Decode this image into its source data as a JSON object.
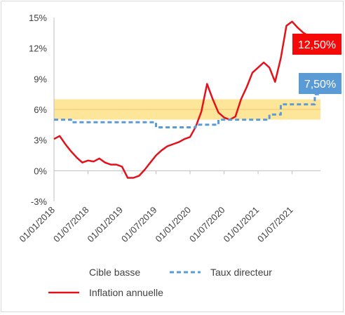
{
  "chart_data": {
    "type": "line",
    "title": "",
    "xlabel": "",
    "ylabel": "",
    "ylim": [
      -3,
      15
    ],
    "yticks": [
      -3,
      0,
      3,
      6,
      9,
      12,
      15
    ],
    "ytick_labels": [
      "-3%",
      "0%",
      "3%",
      "6%",
      "9%",
      "12%",
      "15%"
    ],
    "xticks": [
      "2018-01-01",
      "2018-07-01",
      "2019-01-01",
      "2019-07-01",
      "2020-01-01",
      "2020-07-01",
      "2021-01-01",
      "2021-07-01"
    ],
    "xtick_labels": [
      "01/01/2018",
      "01/07/2018",
      "01/01/2019",
      "01/07/2019",
      "01/01/2020",
      "01/07/2020",
      "01/01/2021",
      "01/07/2021"
    ],
    "xlim": [
      "2018-01-01",
      "2021-12-01"
    ],
    "grid": false,
    "target_band": {
      "low": 5,
      "high": 7,
      "midline": 6,
      "color": "#fde699",
      "line_color": "#f7c56b"
    },
    "series": [
      {
        "name": "Inflation annuelle",
        "style": "solid",
        "color": "#e4111b",
        "x": [
          "2018-01-01",
          "2018-02-01",
          "2018-03-01",
          "2018-04-01",
          "2018-05-01",
          "2018-06-01",
          "2018-07-01",
          "2018-08-01",
          "2018-09-01",
          "2018-10-01",
          "2018-11-01",
          "2018-12-01",
          "2019-01-01",
          "2019-02-01",
          "2019-03-01",
          "2019-04-01",
          "2019-05-01",
          "2019-06-01",
          "2019-07-01",
          "2019-08-01",
          "2019-09-01",
          "2019-10-01",
          "2019-11-01",
          "2019-12-01",
          "2020-01-01",
          "2020-02-01",
          "2020-03-01",
          "2020-04-01",
          "2020-05-01",
          "2020-06-01",
          "2020-07-01",
          "2020-08-01",
          "2020-09-01",
          "2020-10-01",
          "2020-11-01",
          "2020-12-01",
          "2021-01-01",
          "2021-02-01",
          "2021-03-01",
          "2021-04-01",
          "2021-05-01",
          "2021-06-01",
          "2021-07-01",
          "2021-08-01",
          "2021-09-01",
          "2021-10-01",
          "2021-11-01"
        ],
        "values": [
          3.1,
          3.4,
          2.6,
          1.9,
          1.3,
          0.8,
          1.0,
          0.9,
          1.2,
          0.8,
          0.6,
          0.6,
          0.4,
          -0.7,
          -0.7,
          -0.5,
          0.1,
          0.8,
          1.5,
          2.0,
          2.4,
          2.6,
          2.8,
          3.1,
          3.3,
          4.3,
          5.8,
          8.5,
          7.0,
          5.7,
          5.2,
          5.0,
          5.3,
          7.0,
          8.2,
          9.6,
          10.1,
          10.6,
          10.1,
          8.7,
          11.0,
          14.2,
          14.6,
          14.0,
          13.5,
          13.2,
          12.5
        ]
      },
      {
        "name": "Taux directeur",
        "style": "dashed",
        "color": "#5b9bd5",
        "x": [
          "2018-01-01",
          "2018-04-01",
          "2018-04-01",
          "2019-07-01",
          "2019-07-01",
          "2020-02-01",
          "2020-02-01",
          "2020-06-01",
          "2020-06-01",
          "2021-03-01",
          "2021-03-01",
          "2021-05-01",
          "2021-05-01",
          "2021-07-01",
          "2021-07-01",
          "2021-11-01",
          "2021-11-01",
          "2021-12-01"
        ],
        "values": [
          5.0,
          5.0,
          4.75,
          4.75,
          4.25,
          4.25,
          4.5,
          4.5,
          5.0,
          5.0,
          5.5,
          5.5,
          6.5,
          6.5,
          6.5,
          6.5,
          7.5,
          7.5
        ]
      }
    ],
    "legend": {
      "placement": "bottom",
      "entries": [
        {
          "label": "Cible basse",
          "style": "none",
          "color": "#ffffff"
        },
        {
          "label": "Taux directeur",
          "style": "dashed",
          "color": "#5b9bd5"
        },
        {
          "label": "Inflation annuelle",
          "style": "solid",
          "color": "#e4111b"
        }
      ]
    },
    "annotations": [
      {
        "text": "12,50%",
        "series": "Inflation annuelle",
        "x": "2021-11-01",
        "y": 12.5,
        "color": "#f50a0a"
      },
      {
        "text": "7,50%",
        "series": "Taux directeur",
        "x": "2021-11-01",
        "y": 7.5,
        "color": "#5b9bd5"
      }
    ],
    "axis_color": "#bfbfbf"
  }
}
